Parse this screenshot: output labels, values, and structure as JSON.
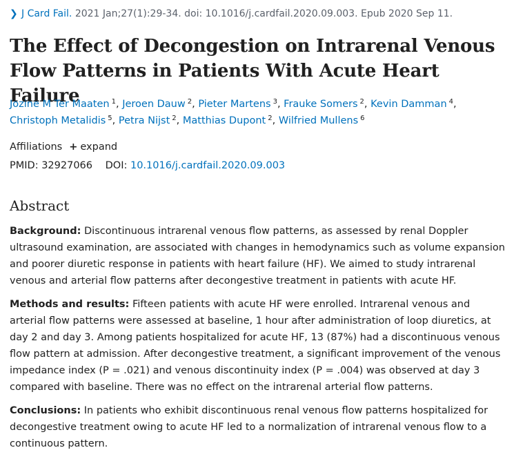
{
  "citation": {
    "journal": "J Card Fail.",
    "details": "2021 Jan;27(1):29-34. doi: 10.1016/j.cardfail.2020.09.003. Epub 2020 Sep 11."
  },
  "title": "The Effect of Decongestion on Intrarenal Venous Flow Patterns in Patients With Acute Heart Failure",
  "authors": [
    {
      "name": "Jozine M Ter Maaten",
      "aff": "1"
    },
    {
      "name": "Jeroen Dauw",
      "aff": "2"
    },
    {
      "name": "Pieter Martens",
      "aff": "3"
    },
    {
      "name": "Frauke Somers",
      "aff": "2"
    },
    {
      "name": "Kevin Damman",
      "aff": "4"
    },
    {
      "name": "Christoph Metalidis",
      "aff": "5"
    },
    {
      "name": "Petra Nijst",
      "aff": "2"
    },
    {
      "name": "Matthias Dupont",
      "aff": "2"
    },
    {
      "name": "Wilfried Mullens",
      "aff": "6"
    }
  ],
  "affiliations": {
    "label": "Affiliations",
    "expand_label": "expand"
  },
  "ids": {
    "pmid_label": "PMID:",
    "pmid": "32927066",
    "doi_label": "DOI:",
    "doi": "10.1016/j.cardfail.2020.09.003"
  },
  "abstract": {
    "heading": "Abstract",
    "sections": [
      {
        "label": "Background:",
        "text": "Discontinuous intrarenal venous flow patterns, as assessed by renal Doppler ultrasound examination, are associated with changes in hemodynamics such as volume expansion and poorer diuretic response in patients with heart failure (HF). We aimed to study intrarenal venous and arterial flow patterns after decongestive treatment in patients with acute HF."
      },
      {
        "label": "Methods and results:",
        "text": "Fifteen patients with acute HF were enrolled. Intrarenal venous and arterial flow patterns were assessed at baseline, 1 hour after administration of loop diuretics, at day 2 and day 3. Among patients hospitalized for acute HF, 13 (87%) had a discontinuous venous flow pattern at admission. After decongestive treatment, a significant improvement of the venous impedance index (P = .021) and venous discontinuity index (P = .004) was observed at day 3 compared with baseline. There was no effect on the intrarenal arterial flow patterns."
      },
      {
        "label": "Conclusions:",
        "text": "In patients who exhibit discontinuous renal venous flow patterns hospitalized for decongestive treatment owing to acute HF led to a normalization of intrarenal venous flow to a continuous pattern."
      }
    ]
  }
}
